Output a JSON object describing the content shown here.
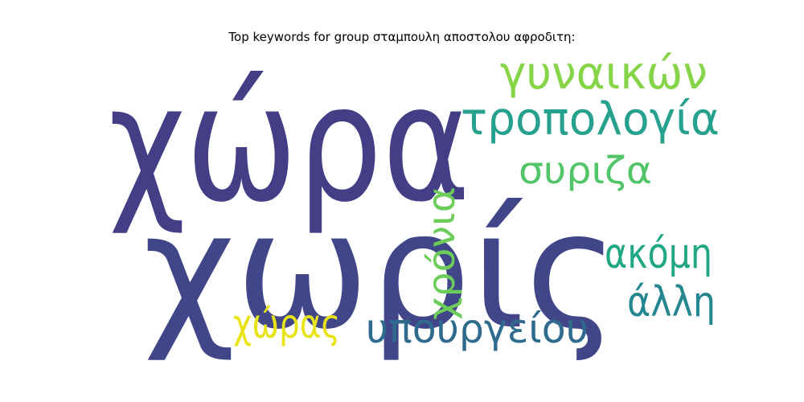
{
  "chart_data": {
    "type": "wordcloud",
    "title": "Top keywords for group σταμπουλη αποστολου αφροδιτη:",
    "words": [
      {
        "text": "χώρα",
        "weight": 1.0,
        "color": "#433e85"
      },
      {
        "text": "χωρίς",
        "weight": 0.98,
        "color": "#404688"
      },
      {
        "text": "γυναικών",
        "weight": 0.32,
        "color": "#86d549"
      },
      {
        "text": "τροπολογία",
        "weight": 0.32,
        "color": "#25a18e"
      },
      {
        "text": "συριζα",
        "weight": 0.26,
        "color": "#52c569"
      },
      {
        "text": "χρόνια",
        "weight": 0.25,
        "color": "#6ccd5a"
      },
      {
        "text": "ακόμη",
        "weight": 0.27,
        "color": "#22a785"
      },
      {
        "text": "άλλη",
        "weight": 0.27,
        "color": "#24868e"
      },
      {
        "text": "χώρας",
        "weight": 0.27,
        "color": "#e8e419"
      },
      {
        "text": "υπουργείου",
        "weight": 0.27,
        "color": "#2f6b8e"
      }
    ]
  }
}
